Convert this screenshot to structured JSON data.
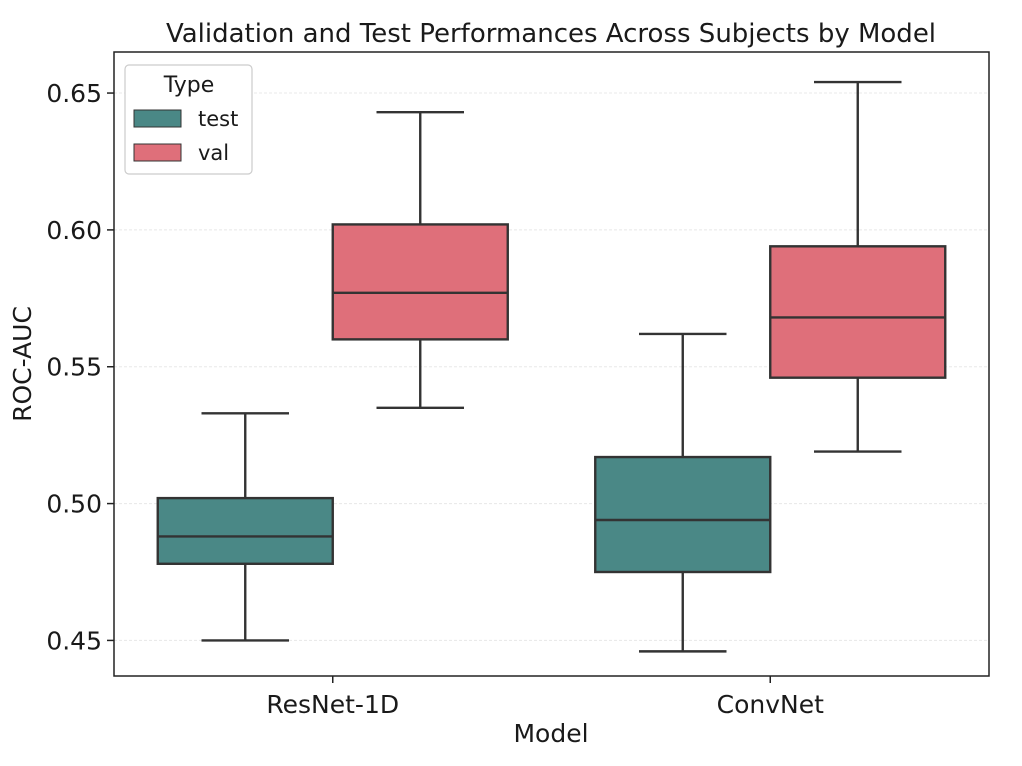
{
  "chart_data": {
    "type": "box",
    "title": "Validation and Test Performances Across Subjects by Model",
    "xlabel": "Model",
    "ylabel": "ROC-AUC",
    "ylim": [
      0.437,
      0.665
    ],
    "yticks": [
      "0.45",
      "0.50",
      "0.55",
      "0.60",
      "0.65"
    ],
    "grid": true,
    "categories": [
      "ResNet-1D",
      "ConvNet"
    ],
    "legend": {
      "title": "Type",
      "placement": "upper-left"
    },
    "series": [
      {
        "name": "test",
        "color": "#4a8886",
        "boxes": [
          {
            "whisker_low": 0.45,
            "q1": 0.478,
            "median": 0.488,
            "q3": 0.502,
            "whisker_high": 0.533
          },
          {
            "whisker_low": 0.446,
            "q1": 0.475,
            "median": 0.494,
            "q3": 0.517,
            "whisker_high": 0.562
          }
        ]
      },
      {
        "name": "val",
        "color": "#df6f7a",
        "boxes": [
          {
            "whisker_low": 0.535,
            "q1": 0.56,
            "median": 0.577,
            "q3": 0.602,
            "whisker_high": 0.643
          },
          {
            "whisker_low": 0.519,
            "q1": 0.546,
            "median": 0.568,
            "q3": 0.594,
            "whisker_high": 0.654
          }
        ]
      }
    ]
  }
}
